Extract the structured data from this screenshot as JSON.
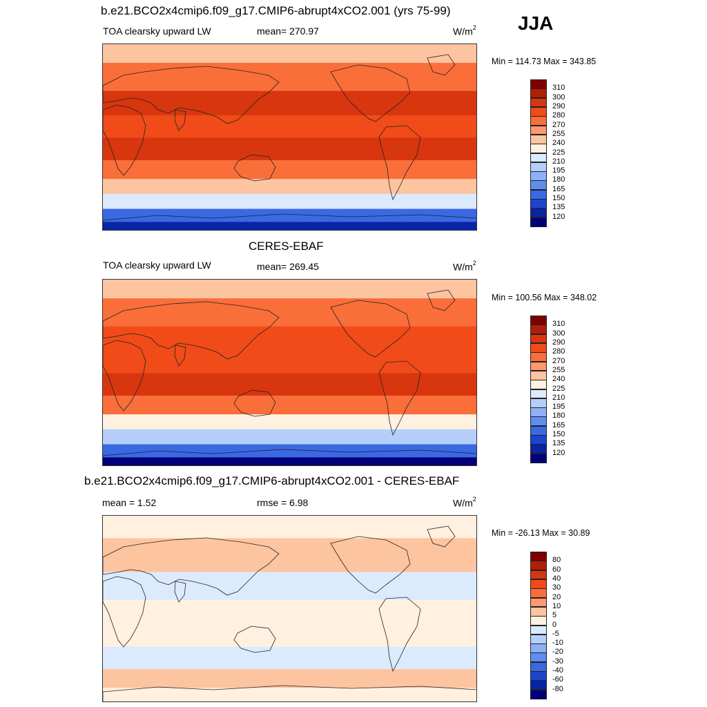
{
  "season": "JJA",
  "panels": [
    {
      "title": "b.e21.BCO2x4cmip6.f09_g17.CMIP6-abrupt4xCO2.001 (yrs 75-99)",
      "variable": "TOA clearsky upward LW",
      "stat_text": "mean= 270.97",
      "unit_base": "W/m",
      "unit_exp": "2",
      "minmax": "Min = 114.73 Max = 343.85",
      "colorbar": {
        "labels": [
          "310",
          "300",
          "290",
          "280",
          "270",
          "255",
          "240",
          "225",
          "210",
          "195",
          "180",
          "165",
          "150",
          "135",
          "120"
        ],
        "colors": [
          "#7f0000",
          "#b01e08",
          "#d8360f",
          "#f04b18",
          "#fa6e3a",
          "#fc9a6e",
          "#fdc4a0",
          "#fff0e0",
          "#dceafe",
          "#b5cffa",
          "#8db1f6",
          "#5f8ef0",
          "#3a69e4",
          "#1d45cc",
          "#0a24a6",
          "#00007a"
        ]
      },
      "bands": [
        {
          "from": 0,
          "to": 0.1,
          "value": 250
        },
        {
          "from": 0.1,
          "to": 0.25,
          "value": 278
        },
        {
          "from": 0.25,
          "to": 0.38,
          "value": 292
        },
        {
          "from": 0.38,
          "to": 0.5,
          "value": 288
        },
        {
          "from": 0.5,
          "to": 0.62,
          "value": 297
        },
        {
          "from": 0.62,
          "to": 0.72,
          "value": 272
        },
        {
          "from": 0.72,
          "to": 0.8,
          "value": 243
        },
        {
          "from": 0.8,
          "to": 0.88,
          "value": 212
        },
        {
          "from": 0.88,
          "to": 0.95,
          "value": 160
        },
        {
          "from": 0.95,
          "to": 1,
          "value": 128
        }
      ]
    },
    {
      "title": "CERES-EBAF",
      "variable": "TOA clearsky upward LW",
      "stat_text": "mean= 269.45",
      "unit_base": "W/m",
      "unit_exp": "2",
      "minmax": "Min = 100.56 Max = 348.02",
      "colorbar": {
        "labels": [
          "310",
          "300",
          "290",
          "280",
          "270",
          "255",
          "240",
          "225",
          "210",
          "195",
          "180",
          "165",
          "150",
          "135",
          "120"
        ],
        "colors": [
          "#7f0000",
          "#b01e08",
          "#d8360f",
          "#f04b18",
          "#fa6e3a",
          "#fc9a6e",
          "#fdc4a0",
          "#fff0e0",
          "#dceafe",
          "#b5cffa",
          "#8db1f6",
          "#5f8ef0",
          "#3a69e4",
          "#1d45cc",
          "#0a24a6",
          "#00007a"
        ]
      },
      "bands": [
        {
          "from": 0,
          "to": 0.1,
          "value": 246
        },
        {
          "from": 0.1,
          "to": 0.25,
          "value": 275
        },
        {
          "from": 0.25,
          "to": 0.38,
          "value": 288
        },
        {
          "from": 0.38,
          "to": 0.5,
          "value": 284
        },
        {
          "from": 0.5,
          "to": 0.62,
          "value": 293
        },
        {
          "from": 0.62,
          "to": 0.72,
          "value": 270
        },
        {
          "from": 0.72,
          "to": 0.8,
          "value": 238
        },
        {
          "from": 0.8,
          "to": 0.88,
          "value": 205
        },
        {
          "from": 0.88,
          "to": 0.95,
          "value": 150
        },
        {
          "from": 0.95,
          "to": 1,
          "value": 118
        }
      ]
    },
    {
      "title": "b.e21.BCO2x4cmip6.f09_g17.CMIP6-abrupt4xCO2.001 - CERES-EBAF",
      "variable": "mean =   1.52",
      "stat_text": "rmse =   6.98",
      "unit_base": "W/m",
      "unit_exp": "2",
      "minmax": "Min = -26.13 Max =  30.89",
      "colorbar": {
        "labels": [
          "80",
          "60",
          "40",
          "30",
          "20",
          "10",
          "5",
          "0",
          "-5",
          "-10",
          "-20",
          "-30",
          "-40",
          "-60",
          "-80"
        ],
        "colors": [
          "#7f0000",
          "#b01e08",
          "#d8360f",
          "#f04b18",
          "#fa6e3a",
          "#fc9a6e",
          "#fdc4a0",
          "#fff0e0",
          "#dceafe",
          "#b5cffa",
          "#8db1f6",
          "#5f8ef0",
          "#3a69e4",
          "#1d45cc",
          "#0a24a6",
          "#00007a"
        ]
      },
      "bands": [
        {
          "from": 0,
          "to": 0.12,
          "value": 3
        },
        {
          "from": 0.12,
          "to": 0.3,
          "value": 6
        },
        {
          "from": 0.3,
          "to": 0.45,
          "value": -4
        },
        {
          "from": 0.45,
          "to": 0.55,
          "value": 2
        },
        {
          "from": 0.55,
          "to": 0.7,
          "value": 4
        },
        {
          "from": 0.7,
          "to": 0.82,
          "value": -3
        },
        {
          "from": 0.82,
          "to": 0.92,
          "value": 7
        },
        {
          "from": 0.92,
          "to": 1,
          "value": 2
        }
      ]
    }
  ]
}
